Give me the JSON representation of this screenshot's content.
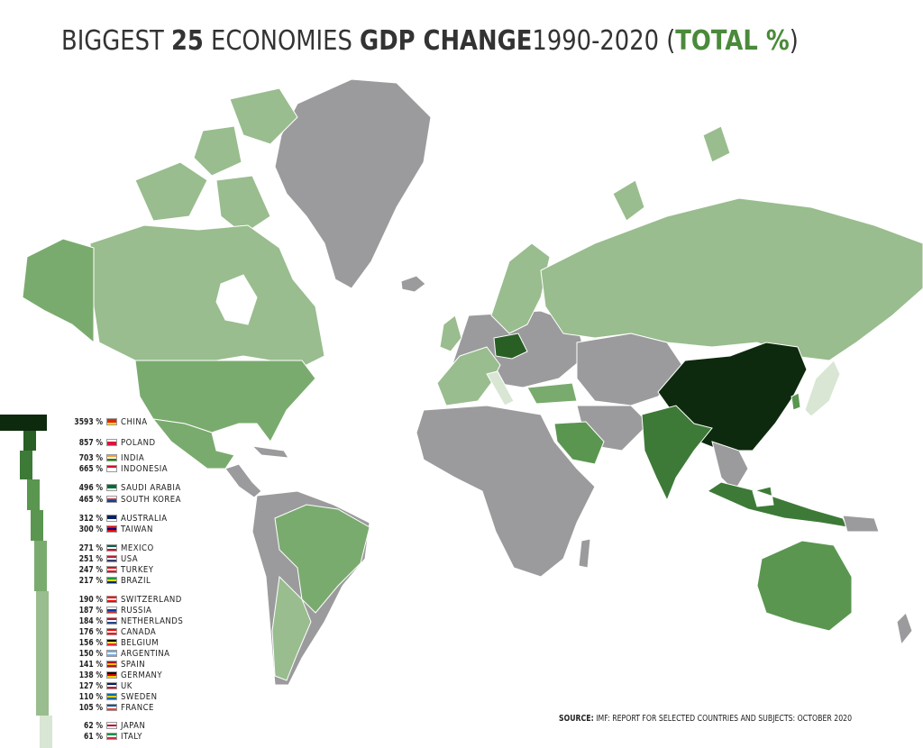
{
  "title": {
    "part1": "BIGGEST ",
    "part2": "25",
    "part3": " ECONOMIES ",
    "part4": "GDP CHANGE",
    "part5": "1990-2020 (",
    "part6": "TOTAL %",
    "part7": ")"
  },
  "colors": {
    "ocean": "#ffffff",
    "no_data": "#9b9b9d",
    "level1": "#99bd8e",
    "level2": "#7aab6e",
    "level3": "#5a9650",
    "level4": "#3d7a37",
    "level5": "#295f25",
    "china": "#0e2a0e",
    "light": "#d8e6d3"
  },
  "legend": [
    {
      "pct": "3593 %",
      "country": "CHINA",
      "flag": [
        "#de2910",
        "#de2910",
        "#ffde00"
      ]
    },
    {
      "pct": "857 %",
      "country": "POLAND",
      "flag": [
        "#ffffff",
        "#dc143c",
        "#dc143c"
      ]
    },
    {
      "pct": "703 %",
      "country": "INDIA",
      "flag": [
        "#ff9933",
        "#ffffff",
        "#138808"
      ]
    },
    {
      "pct": "665 %",
      "country": "INDONESIA",
      "flag": [
        "#ce1126",
        "#ffffff",
        "#ffffff"
      ]
    },
    {
      "pct": "496 %",
      "country": "SAUDI ARABIA",
      "flag": [
        "#006c35",
        "#006c35",
        "#ffffff"
      ]
    },
    {
      "pct": "465 %",
      "country": "SOUTH KOREA",
      "flag": [
        "#ffffff",
        "#cd2e3a",
        "#0047a0"
      ]
    },
    {
      "pct": "312 %",
      "country": "AUSTRALIA",
      "flag": [
        "#012169",
        "#012169",
        "#ffffff"
      ]
    },
    {
      "pct": "300 %",
      "country": "TAIWAN",
      "flag": [
        "#fe0000",
        "#000095",
        "#fe0000"
      ]
    },
    {
      "pct": "271 %",
      "country": "MEXICO",
      "flag": [
        "#006847",
        "#ffffff",
        "#ce1126"
      ]
    },
    {
      "pct": "251 %",
      "country": "USA",
      "flag": [
        "#b22234",
        "#ffffff",
        "#3c3b6e"
      ]
    },
    {
      "pct": "247 %",
      "country": "TURKEY",
      "flag": [
        "#e30a17",
        "#ffffff",
        "#e30a17"
      ]
    },
    {
      "pct": "217 %",
      "country": "BRAZIL",
      "flag": [
        "#009c3b",
        "#ffdf00",
        "#002776"
      ]
    },
    {
      "pct": "190 %",
      "country": "SWITZERLAND",
      "flag": [
        "#ff0000",
        "#ffffff",
        "#ff0000"
      ]
    },
    {
      "pct": "187 %",
      "country": "RUSSIA",
      "flag": [
        "#ffffff",
        "#0039a6",
        "#d52b1e"
      ]
    },
    {
      "pct": "184 %",
      "country": "NETHERLANDS",
      "flag": [
        "#ae1c28",
        "#ffffff",
        "#21468b"
      ]
    },
    {
      "pct": "176 %",
      "country": "CANADA",
      "flag": [
        "#ff0000",
        "#ffffff",
        "#ff0000"
      ]
    },
    {
      "pct": "156 %",
      "country": "BELGIUM",
      "flag": [
        "#000000",
        "#fae042",
        "#ed2939"
      ]
    },
    {
      "pct": "150 %",
      "country": "ARGENTINA",
      "flag": [
        "#74acdf",
        "#ffffff",
        "#74acdf"
      ]
    },
    {
      "pct": "141 %",
      "country": "SPAIN",
      "flag": [
        "#aa151b",
        "#f1bf00",
        "#aa151b"
      ]
    },
    {
      "pct": "138 %",
      "country": "GERMANY",
      "flag": [
        "#000000",
        "#dd0000",
        "#ffce00"
      ]
    },
    {
      "pct": "127 %",
      "country": "UK",
      "flag": [
        "#012169",
        "#ffffff",
        "#c8102e"
      ]
    },
    {
      "pct": "110 %",
      "country": "SWEDEN",
      "flag": [
        "#006aa7",
        "#fecc00",
        "#006aa7"
      ]
    },
    {
      "pct": "105 %",
      "country": "FRANCE",
      "flag": [
        "#0055a4",
        "#ffffff",
        "#ef4135"
      ]
    },
    {
      "pct": "62 %",
      "country": "JAPAN",
      "flag": [
        "#ffffff",
        "#bc002d",
        "#ffffff"
      ]
    },
    {
      "pct": "61 %",
      "country": "ITALY",
      "flag": [
        "#009246",
        "#ffffff",
        "#ce2b37"
      ]
    }
  ],
  "source": {
    "label": "SOURCE:",
    "text": " IMF: REPORT FOR SELECTED COUNTRIES AND SUBJECTS: OCTOBER 2020"
  }
}
